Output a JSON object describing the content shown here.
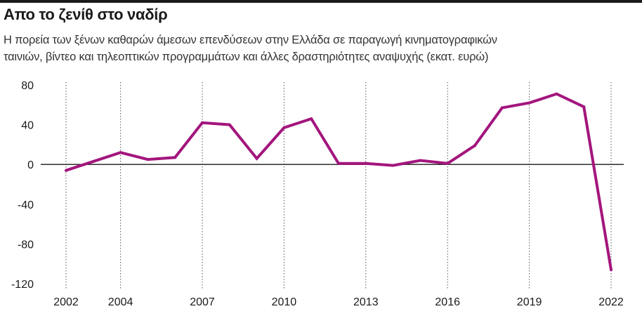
{
  "header": {
    "title": "Απο το ζενίθ στο ναδίρ",
    "subtitle_line1": "Η πορεία των ξένων καθαρών άμεσων επενδύσεων στην Ελλάδα σε παραγωγή κινηματογραφικών",
    "subtitle_line2": "ταινιών, βίντεο και τηλεοπτικών προγραμμάτων και άλλες δραστηριότητες αναψυχής (εκατ. ευρώ)"
  },
  "colors": {
    "line": "#a3157d",
    "axis": "#1a1a1a",
    "grid": "#555555"
  },
  "chart_data": {
    "type": "line",
    "title": "Απο το ζενίθ στο ναδίρ",
    "subtitle": "Η πορεία των ξένων καθαρών άμεσων επενδύσεων στην Ελλάδα σε παραγωγή κινηματογραφικών ταινιών, βίντεο και τηλεοπτικών προγραμμάτων και άλλες δραστηριότητες αναψυχής (εκατ. ευρώ)",
    "xlabel": "",
    "ylabel": "",
    "x": [
      2002,
      2003,
      2004,
      2005,
      2006,
      2007,
      2008,
      2009,
      2010,
      2011,
      2012,
      2013,
      2014,
      2015,
      2016,
      2017,
      2018,
      2019,
      2020,
      2021,
      2022
    ],
    "series": [
      {
        "values": [
          -6,
          3,
          12,
          5,
          7,
          42,
          40,
          6,
          37,
          46,
          1,
          1,
          -1,
          4,
          1,
          19,
          57,
          62,
          71,
          58,
          -106
        ]
      }
    ],
    "xticks": [
      2002,
      2004,
      2007,
      2010,
      2013,
      2016,
      2019,
      2022
    ],
    "yticks": [
      80,
      40,
      0,
      -40,
      -80,
      -120
    ],
    "xlim": [
      2001,
      2022.5
    ],
    "ylim": [
      -120,
      80
    ],
    "grid": "vertical dotted lines at labeled years; solid zero line",
    "legend": "none"
  }
}
